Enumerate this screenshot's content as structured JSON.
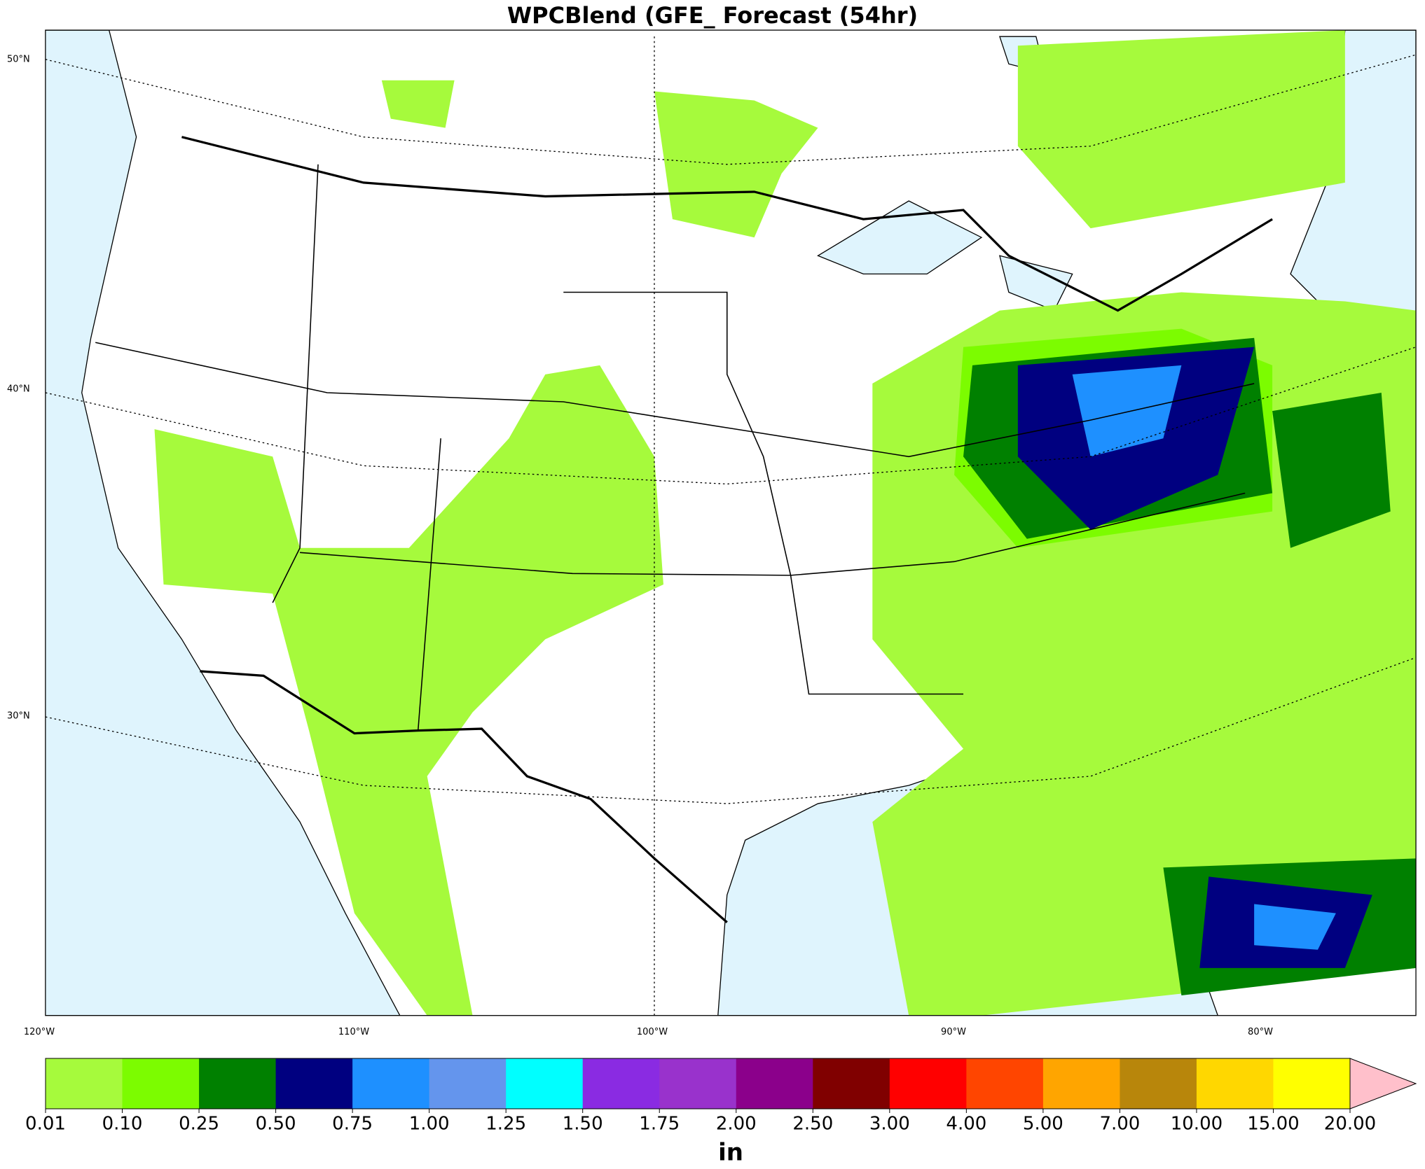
{
  "title": "WPCBlend (GFE_ Forecast (54hr)",
  "lat_labels": [
    "50°N",
    "40°N",
    "30°N"
  ],
  "lon_labels": [
    "120°W",
    "110°W",
    "100°W",
    "90°W",
    "80°W"
  ],
  "colorbar": {
    "label": "in",
    "ticks": [
      {
        "value": 0.01,
        "label": "0.01"
      },
      {
        "value": 0.1,
        "label": "0.10"
      },
      {
        "value": 0.25,
        "label": "0.25"
      },
      {
        "value": 0.5,
        "label": "0.50"
      },
      {
        "value": 0.75,
        "label": "0.75"
      },
      {
        "value": 1,
        "label": "1.00"
      },
      {
        "value": 1.25,
        "label": "1.25"
      },
      {
        "value": 1.5,
        "label": "1.50"
      },
      {
        "value": 1.75,
        "label": "1.75"
      },
      {
        "value": 2,
        "label": "2.00"
      },
      {
        "value": 2.5,
        "label": "2.50"
      },
      {
        "value": 3,
        "label": "3.00"
      },
      {
        "value": 4,
        "label": "4.00"
      },
      {
        "value": 5,
        "label": "5.00"
      },
      {
        "value": 7,
        "label": "7.00"
      },
      {
        "value": 10,
        "label": "10.00"
      },
      {
        "value": 15,
        "label": "15.00"
      },
      {
        "value": 20,
        "label": "20.00"
      }
    ],
    "colors": [
      "#a6fa3c",
      "#7cfc00",
      "#008000",
      "#000080",
      "#1e90ff",
      "#6495ed",
      "#00ffff",
      "#8a2be2",
      "#9932cc",
      "#8b008b",
      "#800000",
      "#ff0000",
      "#ff4500",
      "#ffa500",
      "#b8860b",
      "#ffd700",
      "#ffff00"
    ],
    "extend_color": "#ffc0cb"
  }
}
